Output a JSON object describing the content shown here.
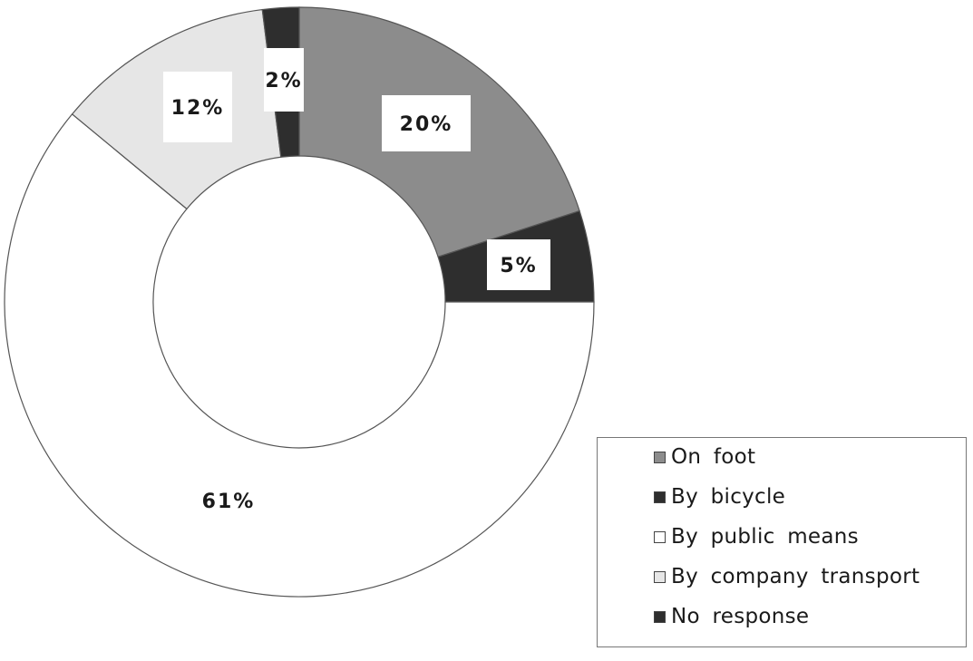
{
  "chart_data": {
    "type": "pie",
    "style": "donut",
    "slices": [
      {
        "label": "On foot",
        "value": 20,
        "display": "20%",
        "color": "#8c8c8c"
      },
      {
        "label": "By bicycle",
        "value": 5,
        "display": "5%",
        "color": "#2e2e2e"
      },
      {
        "label": "By public means",
        "value": 61,
        "display": "61%",
        "color": "#ffffff"
      },
      {
        "label": "By company transport",
        "value": 12,
        "display": "12%",
        "color": "#e6e6e6"
      },
      {
        "label": "No response",
        "value": 2,
        "display": "2%",
        "color": "#2e2e2e"
      }
    ],
    "legend_position": "bottom-right"
  }
}
